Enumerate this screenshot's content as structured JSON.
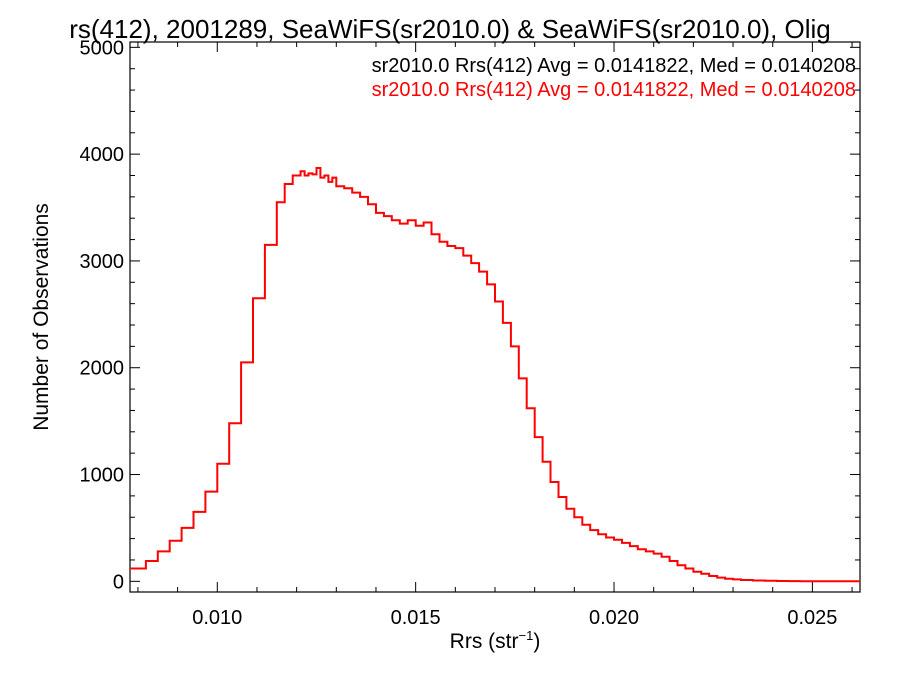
{
  "chart_data": {
    "type": "line",
    "title": "rs(412), 2001289, SeaWiFS(sr2010.0) & SeaWiFS(sr2010.0), Olig",
    "xlabel": "Rrs (str",
    "xlabel_sup": "−1",
    "xlabel_tail": ")",
    "ylabel": "Number of Observations",
    "xlim": [
      0.0078,
      0.0262
    ],
    "ylim": [
      -100,
      5050
    ],
    "x_ticks": [
      0.01,
      0.015,
      0.02,
      0.025
    ],
    "x_tick_labels": [
      "0.010",
      "0.015",
      "0.020",
      "0.025"
    ],
    "y_ticks": [
      0,
      1000,
      2000,
      3000,
      4000,
      5000
    ],
    "y_tick_labels": [
      "0",
      "1000",
      "2000",
      "3000",
      "4000",
      "5000"
    ],
    "grid": false,
    "legend": [
      {
        "text": "sr2010.0 Rrs(412) Avg = 0.0141822, Med = 0.0140208",
        "color": "#000000"
      },
      {
        "text": "sr2010.0 Rrs(412) Avg = 0.0141822, Med = 0.0140208",
        "color": "#ff0000"
      }
    ],
    "series": [
      {
        "color": "#ff0000",
        "x": [
          0.0078,
          0.0082,
          0.0085,
          0.0088,
          0.0091,
          0.0094,
          0.0097,
          0.01,
          0.0103,
          0.0106,
          0.0109,
          0.0112,
          0.0115,
          0.0117,
          0.0119,
          0.0121,
          0.0122,
          0.0123,
          0.0124,
          0.0125,
          0.0126,
          0.0127,
          0.0128,
          0.0129,
          0.013,
          0.0132,
          0.0134,
          0.0136,
          0.0138,
          0.014,
          0.0142,
          0.0144,
          0.0146,
          0.0148,
          0.015,
          0.0152,
          0.0154,
          0.0156,
          0.0158,
          0.016,
          0.0162,
          0.0164,
          0.0166,
          0.0168,
          0.017,
          0.0172,
          0.0174,
          0.0176,
          0.0178,
          0.018,
          0.0182,
          0.0184,
          0.0186,
          0.0188,
          0.019,
          0.0192,
          0.0194,
          0.0196,
          0.0198,
          0.02,
          0.0202,
          0.0204,
          0.0206,
          0.0208,
          0.021,
          0.0212,
          0.0214,
          0.0216,
          0.0218,
          0.022,
          0.0222,
          0.0224,
          0.0226,
          0.0228,
          0.023,
          0.0232,
          0.0235,
          0.0238,
          0.0241,
          0.0244,
          0.0247,
          0.025,
          0.0253,
          0.0256,
          0.0259,
          0.0262
        ],
        "y": [
          120,
          190,
          280,
          380,
          500,
          650,
          840,
          1100,
          1480,
          2050,
          2650,
          3150,
          3550,
          3720,
          3800,
          3840,
          3800,
          3820,
          3810,
          3870,
          3780,
          3800,
          3740,
          3780,
          3700,
          3680,
          3640,
          3600,
          3530,
          3450,
          3420,
          3380,
          3350,
          3380,
          3330,
          3360,
          3250,
          3180,
          3140,
          3120,
          3050,
          2980,
          2900,
          2780,
          2620,
          2420,
          2200,
          1900,
          1620,
          1350,
          1120,
          930,
          790,
          680,
          600,
          530,
          480,
          440,
          410,
          390,
          360,
          330,
          300,
          280,
          260,
          230,
          190,
          150,
          120,
          90,
          70,
          50,
          35,
          25,
          18,
          12,
          8,
          5,
          3,
          2,
          1,
          1,
          0,
          0,
          0,
          0
        ]
      }
    ]
  }
}
